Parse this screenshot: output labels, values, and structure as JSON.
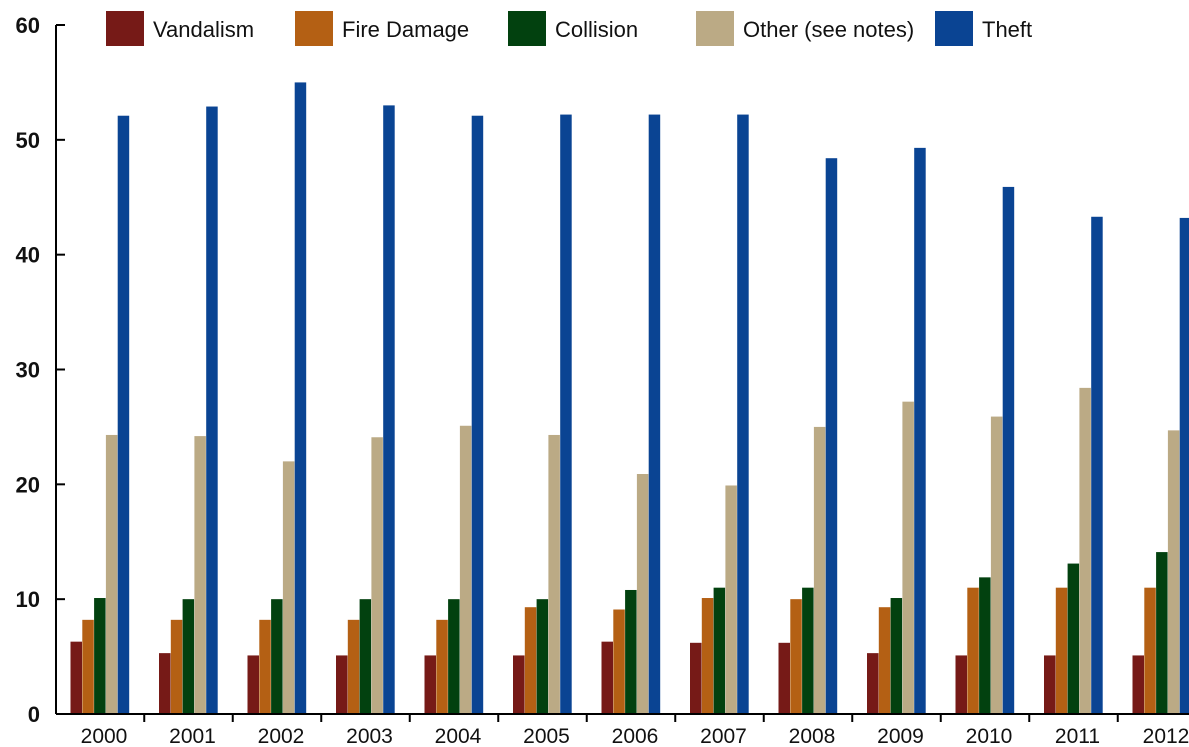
{
  "chart_data": {
    "type": "bar",
    "title": "",
    "xlabel": "",
    "ylabel": "",
    "ylim": [
      0,
      60
    ],
    "y_ticks": [
      "0",
      "10",
      "20",
      "30",
      "40",
      "50",
      "60"
    ],
    "grid": false,
    "legend_position": "top",
    "categories": [
      "2000",
      "2001",
      "2002",
      "2003",
      "2004",
      "2005",
      "2006",
      "2007",
      "2008",
      "2009",
      "2010",
      "2011",
      "2012"
    ],
    "series": [
      {
        "name": "Vandalism",
        "color": "#761a17",
        "values": [
          6.3,
          5.3,
          5.1,
          5.1,
          5.1,
          5.1,
          6.3,
          6.2,
          6.2,
          5.3,
          5.1,
          5.1,
          5.1
        ]
      },
      {
        "name": "Fire Damage",
        "color": "#b46014",
        "values": [
          8.2,
          8.2,
          8.2,
          8.2,
          8.2,
          9.3,
          9.1,
          10.1,
          10.0,
          9.3,
          11.0,
          11.0,
          11.0
        ]
      },
      {
        "name": "Collision",
        "color": "#02410f",
        "values": [
          10.1,
          10.0,
          10.0,
          10.0,
          10.0,
          10.0,
          10.8,
          11.0,
          11.0,
          10.1,
          11.9,
          13.1,
          14.1
        ]
      },
      {
        "name": "Other (see notes)",
        "color": "#bbaa85",
        "values": [
          24.3,
          24.2,
          22.0,
          24.1,
          25.1,
          24.3,
          20.9,
          19.9,
          25.0,
          27.2,
          25.9,
          28.4,
          24.7
        ]
      },
      {
        "name": "Theft",
        "color": "#0a4493",
        "values": [
          52.1,
          52.9,
          55.0,
          53.0,
          52.1,
          52.2,
          52.2,
          52.2,
          48.4,
          49.3,
          45.9,
          43.3,
          43.2
        ]
      }
    ]
  }
}
